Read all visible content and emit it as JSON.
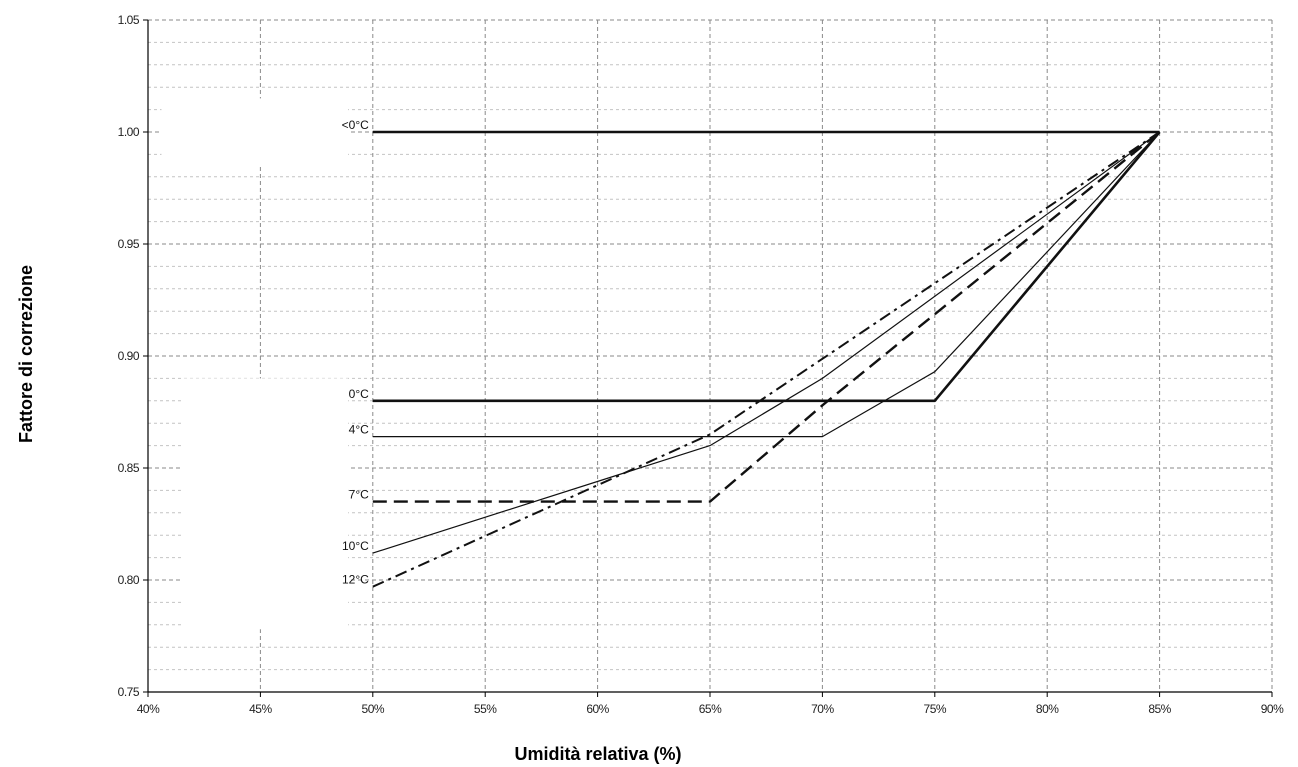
{
  "chart_data": {
    "type": "line",
    "title": "",
    "xlabel": "Umidità relativa (%)",
    "ylabel": "Fattore di correzione",
    "xlim": [
      40,
      90
    ],
    "ylim": [
      0.75,
      1.05
    ],
    "x_ticks": [
      40,
      45,
      50,
      55,
      60,
      65,
      70,
      75,
      80,
      85,
      90
    ],
    "x_tick_labels": [
      "40%",
      "45%",
      "50%",
      "55%",
      "60%",
      "65%",
      "70%",
      "75%",
      "80%",
      "85%",
      "90%"
    ],
    "y_ticks": [
      0.75,
      0.8,
      0.85,
      0.9,
      0.95,
      1.0,
      1.05
    ],
    "y_tick_labels": [
      "0.75",
      "0.80",
      "0.85",
      "0.90",
      "0.95",
      "1.00",
      "1.05"
    ],
    "grid": true,
    "legend": "none",
    "series": [
      {
        "name": "<0°C",
        "style": "solid-thick",
        "x": [
          50,
          85
        ],
        "y": [
          1.0,
          1.0
        ]
      },
      {
        "name": "0°C",
        "style": "solid-thick",
        "x": [
          50,
          75,
          85
        ],
        "y": [
          0.88,
          0.88,
          1.0
        ]
      },
      {
        "name": "4°C",
        "style": "solid-thin",
        "x": [
          50,
          70,
          75,
          85
        ],
        "y": [
          0.864,
          0.864,
          0.893,
          1.0
        ]
      },
      {
        "name": "7°C",
        "style": "dashed",
        "x": [
          50,
          65,
          70,
          85
        ],
        "y": [
          0.835,
          0.835,
          0.878,
          1.0
        ]
      },
      {
        "name": "10°C",
        "style": "solid-thin",
        "x": [
          50,
          65,
          70,
          85
        ],
        "y": [
          0.812,
          0.86,
          0.89,
          1.0
        ]
      },
      {
        "name": "12°C",
        "style": "dash-dot",
        "x": [
          50,
          65,
          85
        ],
        "y": [
          0.797,
          0.865,
          1.0
        ]
      }
    ]
  }
}
